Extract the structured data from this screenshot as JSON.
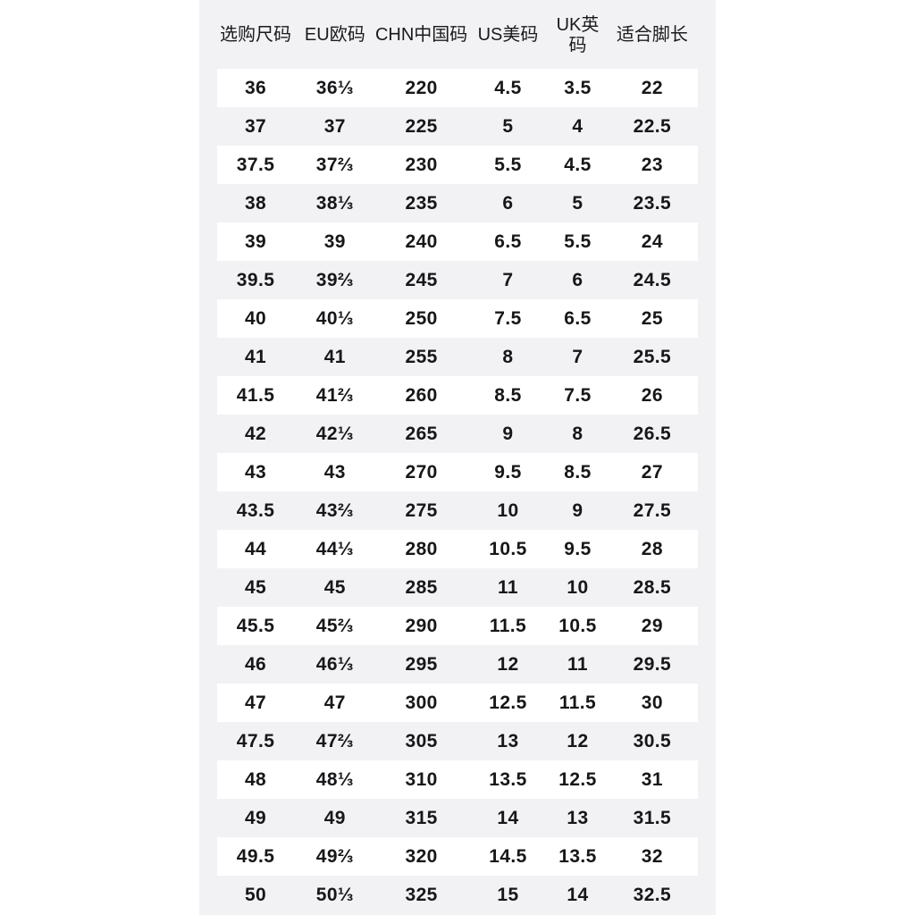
{
  "table": {
    "title": "shoe-size-conversion-chart",
    "columns": [
      {
        "label": "选购尺码"
      },
      {
        "label": "EU欧码"
      },
      {
        "label": "CHN中国码"
      },
      {
        "label": "US美码"
      },
      {
        "label": "UK英码"
      },
      {
        "label": "适合脚长"
      }
    ],
    "rows": [
      {
        "cells": [
          "36",
          "36⅓",
          "220",
          "4.5",
          "3.5",
          "22"
        ]
      },
      {
        "cells": [
          "37",
          "37",
          "225",
          "5",
          "4",
          "22.5"
        ]
      },
      {
        "cells": [
          "37.5",
          "37⅔",
          "230",
          "5.5",
          "4.5",
          "23"
        ]
      },
      {
        "cells": [
          "38",
          "38⅓",
          "235",
          "6",
          "5",
          "23.5"
        ]
      },
      {
        "cells": [
          "39",
          "39",
          "240",
          "6.5",
          "5.5",
          "24"
        ]
      },
      {
        "cells": [
          "39.5",
          "39⅔",
          "245",
          "7",
          "6",
          "24.5"
        ]
      },
      {
        "cells": [
          "40",
          "40⅓",
          "250",
          "7.5",
          "6.5",
          "25"
        ]
      },
      {
        "cells": [
          "41",
          "41",
          "255",
          "8",
          "7",
          "25.5"
        ]
      },
      {
        "cells": [
          "41.5",
          "41⅔",
          "260",
          "8.5",
          "7.5",
          "26"
        ]
      },
      {
        "cells": [
          "42",
          "42⅓",
          "265",
          "9",
          "8",
          "26.5"
        ]
      },
      {
        "cells": [
          "43",
          "43",
          "270",
          "9.5",
          "8.5",
          "27"
        ]
      },
      {
        "cells": [
          "43.5",
          "43⅔",
          "275",
          "10",
          "9",
          "27.5"
        ]
      },
      {
        "cells": [
          "44",
          "44⅓",
          "280",
          "10.5",
          "9.5",
          "28"
        ]
      },
      {
        "cells": [
          "45",
          "45",
          "285",
          "11",
          "10",
          "28.5"
        ]
      },
      {
        "cells": [
          "45.5",
          "45⅔",
          "290",
          "11.5",
          "10.5",
          "29"
        ]
      },
      {
        "cells": [
          "46",
          "46⅓",
          "295",
          "12",
          "11",
          "29.5"
        ]
      },
      {
        "cells": [
          "47",
          "47",
          "300",
          "12.5",
          "11.5",
          "30"
        ]
      },
      {
        "cells": [
          "47.5",
          "47⅔",
          "305",
          "13",
          "12",
          "30.5"
        ]
      },
      {
        "cells": [
          "48",
          "48⅓",
          "310",
          "13.5",
          "12.5",
          "31"
        ]
      },
      {
        "cells": [
          "49",
          "49",
          "315",
          "14",
          "13",
          "31.5"
        ]
      },
      {
        "cells": [
          "49.5",
          "49⅔",
          "320",
          "14.5",
          "13.5",
          "32"
        ]
      },
      {
        "cells": [
          "50",
          "50⅓",
          "325",
          "15",
          "14",
          "32.5"
        ]
      }
    ]
  },
  "colors": {
    "page_bg": "#ffffff",
    "panel_bg": "#f2f2f5",
    "row_band_bg": "#ffffff",
    "text": "#1a1a1c"
  }
}
